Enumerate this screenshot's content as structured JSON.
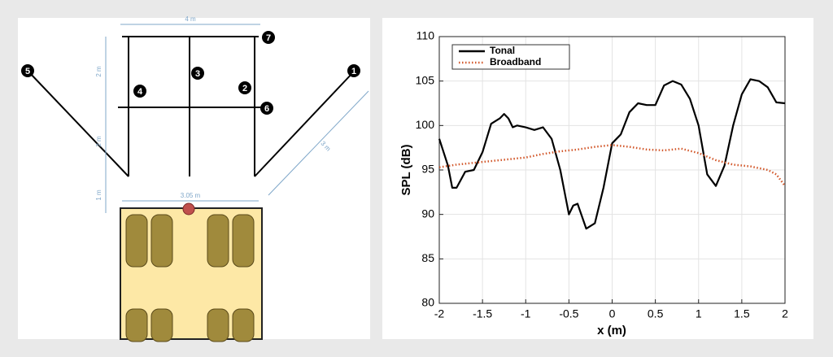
{
  "diagram": {
    "nodes": [
      "1",
      "2",
      "3",
      "4",
      "5",
      "6",
      "7"
    ],
    "dimensions": {
      "top": "4 m",
      "upper": "2 m",
      "lower": "2 m",
      "gap": "1 m",
      "width": "3.05 m",
      "diagonal": "3 m"
    }
  },
  "chart_data": {
    "type": "line",
    "xlabel": "x (m)",
    "ylabel": "SPL (dB)",
    "xlim": [
      -2,
      2
    ],
    "ylim": [
      80,
      110
    ],
    "xticks": [
      -2,
      -1.5,
      -1,
      -0.5,
      0,
      0.5,
      1,
      1.5,
      2
    ],
    "yticks": [
      80,
      85,
      90,
      95,
      100,
      105,
      110
    ],
    "grid": true,
    "legend": "upper-left",
    "series": [
      {
        "name": "Tonal",
        "color": "#000000",
        "style": "solid",
        "x": [
          -2,
          -1.9,
          -1.85,
          -1.8,
          -1.7,
          -1.6,
          -1.5,
          -1.4,
          -1.3,
          -1.25,
          -1.2,
          -1.15,
          -1.1,
          -1.0,
          -0.9,
          -0.8,
          -0.7,
          -0.6,
          -0.5,
          -0.45,
          -0.4,
          -0.3,
          -0.2,
          -0.1,
          0,
          0.1,
          0.2,
          0.3,
          0.4,
          0.5,
          0.6,
          0.7,
          0.8,
          0.9,
          1.0,
          1.1,
          1.2,
          1.3,
          1.4,
          1.5,
          1.6,
          1.7,
          1.8,
          1.9,
          2.0
        ],
        "values": [
          98.5,
          95.5,
          93,
          93,
          94.8,
          95,
          97,
          100.2,
          100.8,
          101.3,
          100.8,
          99.8,
          100,
          99.8,
          99.5,
          99.8,
          98.5,
          95,
          90,
          91,
          91.2,
          88.4,
          89,
          93,
          98,
          99,
          101.5,
          102.5,
          102.3,
          102.3,
          104.5,
          105,
          104.6,
          103,
          100,
          94.5,
          93.2,
          95.5,
          100,
          103.5,
          105.2,
          105,
          104.3,
          102.6,
          102.5
        ]
      },
      {
        "name": "Broadband",
        "color": "#d2572a",
        "style": "dotted",
        "x": [
          -2,
          -1.8,
          -1.6,
          -1.4,
          -1.2,
          -1,
          -0.8,
          -0.6,
          -0.4,
          -0.2,
          0,
          0.2,
          0.4,
          0.6,
          0.8,
          1,
          1.2,
          1.4,
          1.6,
          1.8,
          1.9,
          2
        ],
        "values": [
          95.3,
          95.6,
          95.8,
          96,
          96.2,
          96.4,
          96.8,
          97.1,
          97.3,
          97.6,
          97.8,
          97.6,
          97.3,
          97.2,
          97.4,
          96.9,
          96.1,
          95.6,
          95.4,
          95,
          94.5,
          93.2
        ]
      }
    ]
  }
}
